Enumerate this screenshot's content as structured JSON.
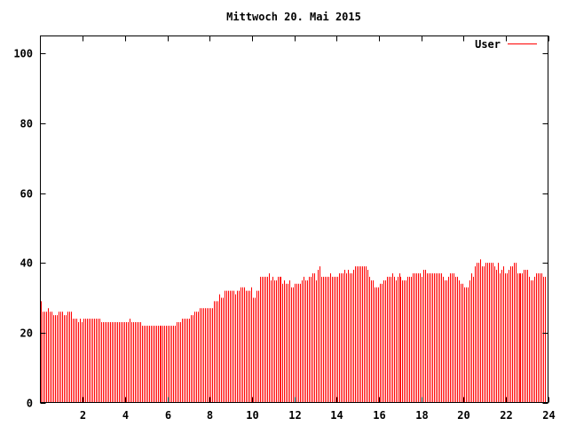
{
  "chart_data": {
    "type": "bar",
    "style": "impulses",
    "title": "Mittwoch 20. Mai 2015",
    "xlabel": "",
    "ylabel": "",
    "xlim": [
      0,
      24
    ],
    "ylim": [
      0,
      105
    ],
    "x_ticks": [
      2,
      4,
      6,
      8,
      10,
      12,
      14,
      16,
      18,
      20,
      22,
      24
    ],
    "y_ticks": [
      0,
      20,
      40,
      60,
      80,
      100
    ],
    "grid": false,
    "legend": "top-right",
    "color": "#ff0000",
    "x_step_hours": 0.0833,
    "series": [
      {
        "name": "User",
        "values": [
          29,
          26,
          26,
          26,
          27,
          26,
          26,
          25,
          25,
          25,
          26,
          26,
          26,
          25,
          25,
          26,
          26,
          26,
          24,
          24,
          24,
          23,
          24,
          23,
          24,
          24,
          24,
          24,
          24,
          24,
          24,
          24,
          24,
          24,
          23,
          23,
          23,
          23,
          23,
          23,
          23,
          23,
          23,
          23,
          23,
          23,
          23,
          23,
          23,
          23,
          24,
          23,
          23,
          23,
          23,
          23,
          23,
          22,
          22,
          22,
          22,
          22,
          22,
          22,
          22,
          22,
          22,
          22,
          22,
          22,
          22,
          22,
          22,
          22,
          22,
          22,
          22,
          23,
          23,
          23,
          24,
          24,
          24,
          24,
          24,
          25,
          25,
          26,
          26,
          26,
          27,
          27,
          27,
          27,
          27,
          27,
          27,
          27,
          29,
          29,
          29,
          31,
          30,
          30,
          32,
          32,
          32,
          32,
          32,
          32,
          31,
          32,
          32,
          33,
          33,
          33,
          32,
          32,
          32,
          33,
          30,
          30,
          32,
          32,
          36,
          36,
          36,
          36,
          36,
          37,
          35,
          36,
          35,
          35,
          36,
          36,
          36,
          34,
          35,
          34,
          34,
          35,
          33,
          33,
          34,
          34,
          34,
          34,
          35,
          36,
          35,
          35,
          36,
          36,
          37,
          37,
          35,
          38,
          39,
          36,
          36,
          36,
          36,
          36,
          37,
          36,
          36,
          36,
          36,
          37,
          37,
          37,
          38,
          37,
          38,
          37,
          37,
          38,
          39,
          39,
          39,
          39,
          39,
          39,
          39,
          38,
          36,
          35,
          35,
          33,
          33,
          33,
          34,
          34,
          35,
          35,
          36,
          36,
          36,
          37,
          36,
          35,
          36,
          37,
          36,
          35,
          35,
          35,
          36,
          36,
          36,
          37,
          37,
          37,
          37,
          37,
          36,
          38,
          38,
          37,
          37,
          37,
          37,
          37,
          37,
          37,
          37,
          37,
          36,
          35,
          35,
          36,
          37,
          37,
          37,
          36,
          36,
          35,
          34,
          34,
          33,
          33,
          33,
          35,
          37,
          36,
          39,
          40,
          40,
          41,
          39,
          39,
          40,
          40,
          40,
          40,
          40,
          39,
          38,
          40,
          37,
          38,
          39,
          37,
          37,
          38,
          39,
          39,
          40,
          40,
          37,
          37,
          37,
          37,
          38,
          38,
          38,
          36,
          35,
          35,
          36,
          37,
          37,
          37,
          37,
          36,
          36
        ]
      }
    ]
  }
}
